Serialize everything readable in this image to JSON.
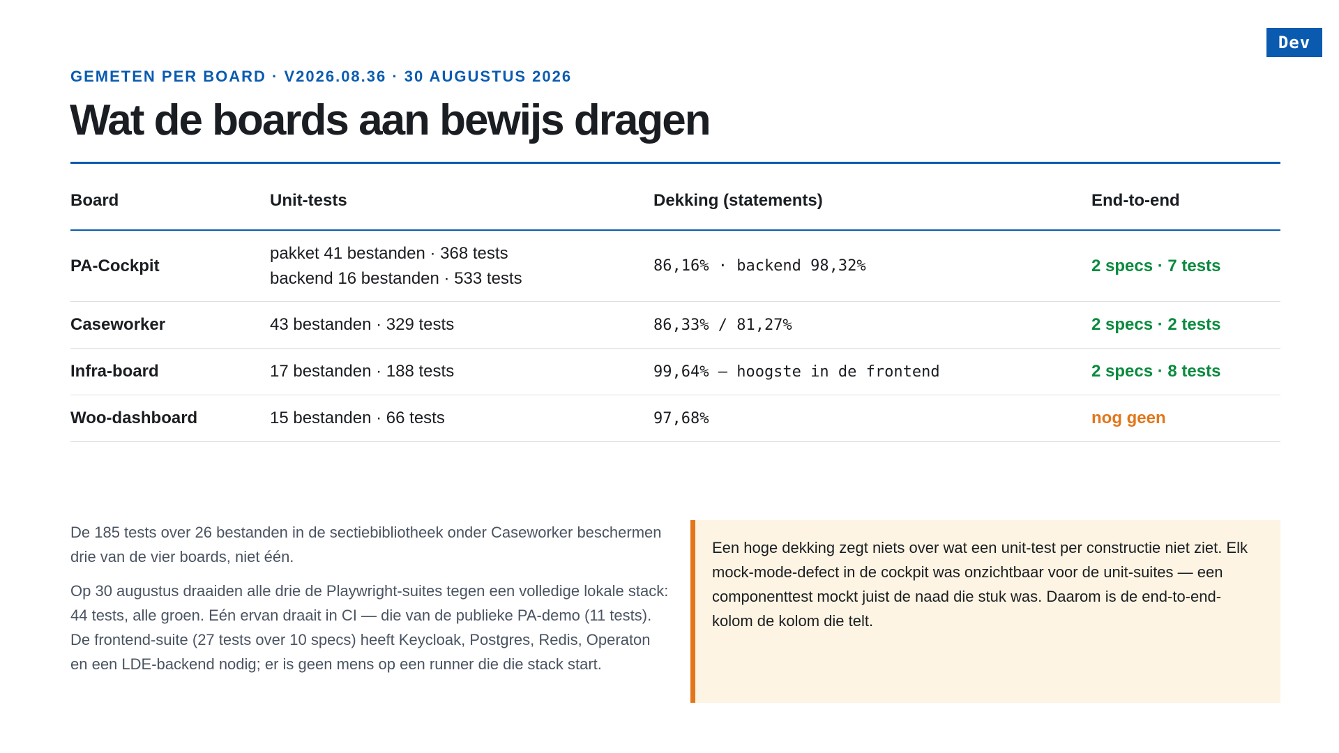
{
  "badge": "Dev",
  "eyebrow": "Gemeten per board · v2026.08.36 · 30 augustus 2026",
  "title": "Wat de boards aan bewijs dragen",
  "table": {
    "headers": [
      "Board",
      "Unit-tests",
      "Dekking (statements)",
      "End-to-end"
    ],
    "rows": [
      {
        "board": "PA-Cockpit",
        "unit_line1": "pakket 41 bestanden · 368 tests",
        "unit_line2": "backend 16 bestanden · 533 tests",
        "coverage": "86,16% · backend 98,32%",
        "e2e": "2 specs · 7 tests",
        "e2e_status": "ok"
      },
      {
        "board": "Caseworker",
        "unit_line1": "43 bestanden · 329 tests",
        "coverage": "86,33% / 81,27%",
        "e2e": "2 specs · 2 tests",
        "e2e_status": "ok"
      },
      {
        "board": "Infra-board",
        "unit_line1": "17 bestanden · 188 tests",
        "coverage": "99,64% — hoogste in de frontend",
        "e2e": "2 specs · 8 tests",
        "e2e_status": "ok"
      },
      {
        "board": "Woo-dashboard",
        "unit_line1": "15 bestanden · 66 tests",
        "coverage": "97,68%",
        "e2e": "nog geen",
        "e2e_status": "warn"
      }
    ]
  },
  "notes": {
    "p1": "De 185 tests over 26 bestanden in de sectiebibliotheek onder Caseworker beschermen drie van de vier boards, niet één.",
    "p2": "Op 30 augustus draaiden alle drie de Playwright-suites tegen een volledige lokale stack: 44 tests, alle groen. Eén ervan draait in CI — die van de publieke PA-demo (11 tests). De frontend-suite (27 tests over 10 specs) heeft Keycloak, Postgres, Redis, Operaton en een LDE-backend nodig; er is geen mens op een runner die die stack start."
  },
  "callout": "Een hoge dekking zegt niets over wat een unit-test per constructie niet ziet. Elk mock-mode-defect in de cockpit was onzichtbaar voor de unit-suites — een componenttest mockt juist de naad die stuk was. Daarom is de end-to-end-kolom de kolom die telt.",
  "colors": {
    "accent": "#0a5bb0",
    "ok": "#0a8a3e",
    "warn": "#e3761a",
    "callout_bg": "#fdf4e3"
  }
}
